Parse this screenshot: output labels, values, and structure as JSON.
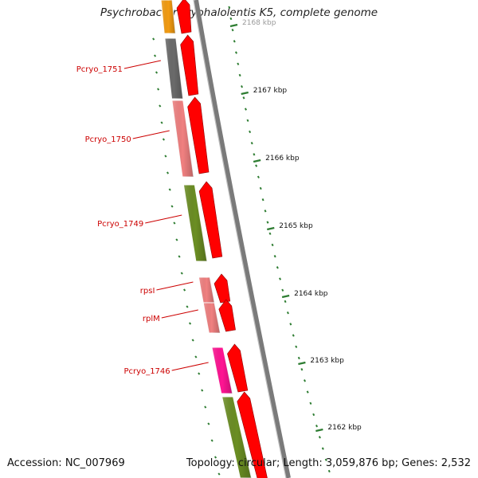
{
  "title": "Psychrobacter cryohalolentis K5, complete genome",
  "footer": {
    "accession": "Accession: NC_007969",
    "summary": "Topology: circular; Length: 3,059,876 bp; Genes: 2,532"
  },
  "scale_labels": [
    "2168 kbp",
    "2167 kbp",
    "2166 kbp",
    "2165 kbp",
    "2164 kbp",
    "2163 kbp",
    "2162 kbp"
  ],
  "genes": [
    {
      "name": "",
      "color": "#f39c12"
    },
    {
      "name": "Pcryo_1751",
      "color": "#6b6b6b"
    },
    {
      "name": "Pcryo_1750",
      "color": "#f08080"
    },
    {
      "name": "Pcryo_1749",
      "color": "#6b8e23"
    },
    {
      "name": "rpsI",
      "color": "#f08080"
    },
    {
      "name": "rplM",
      "color": "#f08080"
    },
    {
      "name": "Pcryo_1746",
      "color": "#ff1493"
    },
    {
      "name": "",
      "color": "#6b8e23"
    }
  ],
  "colors": {
    "cds": "#ff0000",
    "label": "#cc0000",
    "tick": "#2e7d32",
    "backbone": "#888888"
  }
}
